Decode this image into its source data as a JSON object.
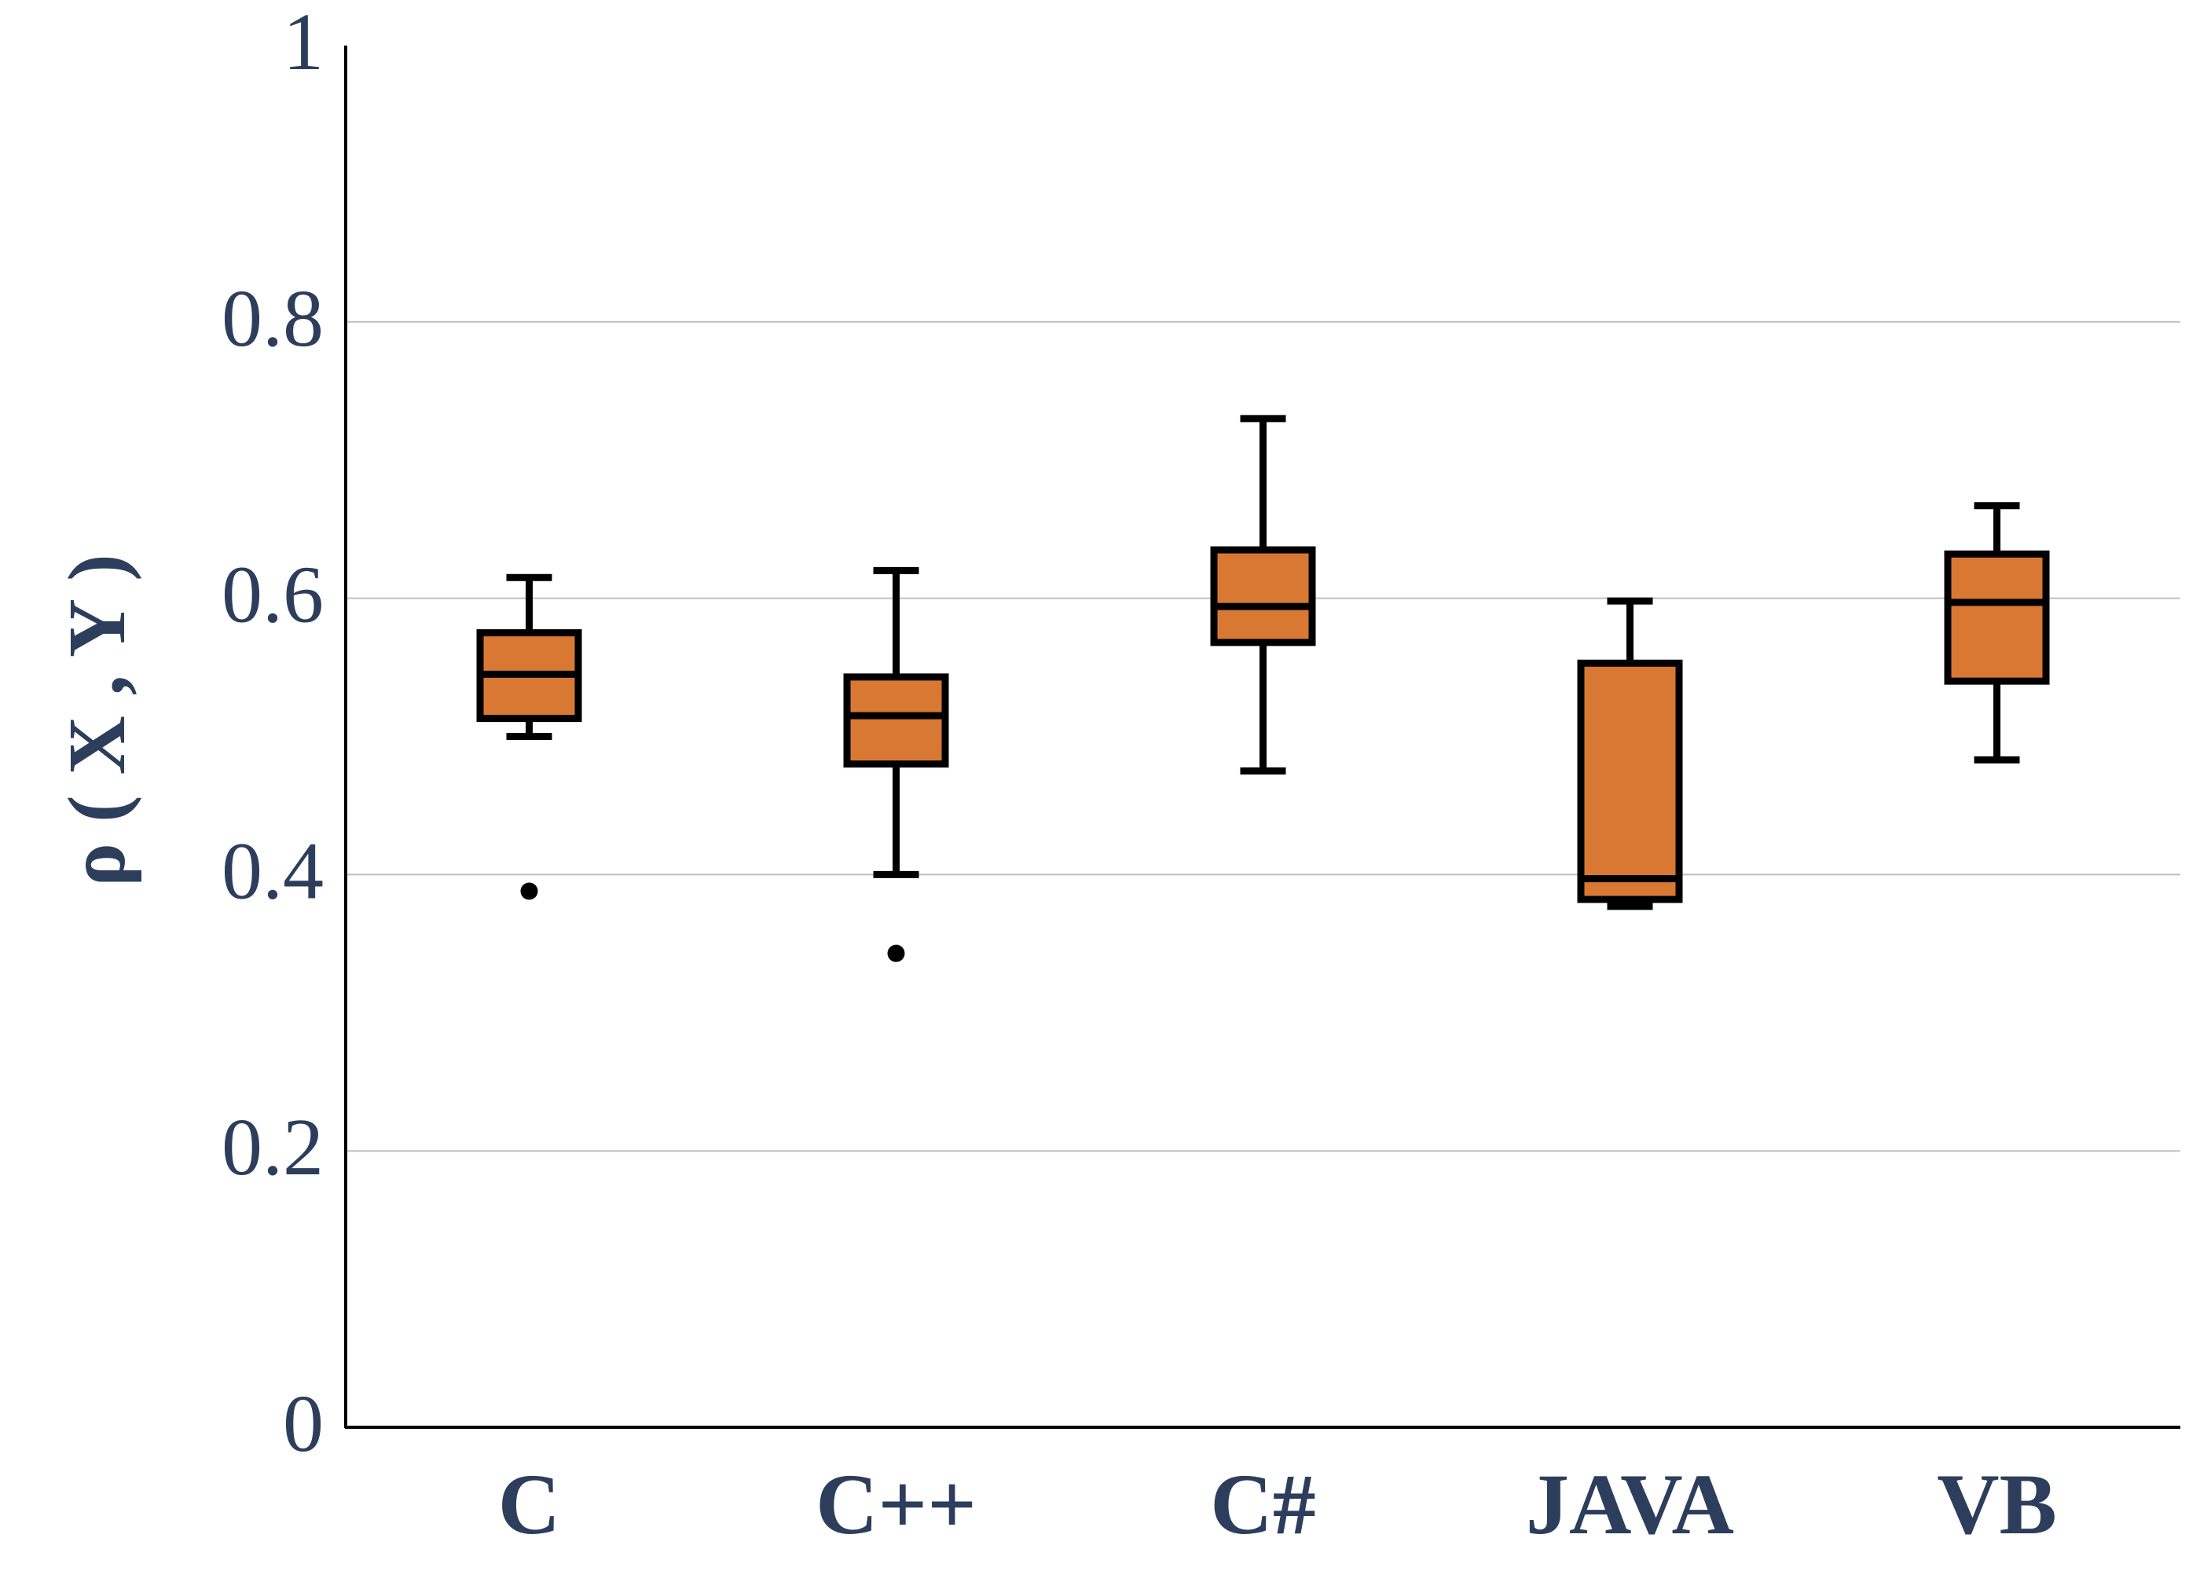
{
  "chart_data": {
    "type": "box",
    "title": "",
    "xlabel": "",
    "ylabel": "ρ ( X , Y )",
    "ylim": [
      0,
      1
    ],
    "yticks": [
      "0",
      "0.2",
      "0.4",
      "0.6",
      "0.8",
      "1"
    ],
    "grid": "horizontal",
    "categories": [
      "C",
      "C++",
      "C#",
      "JAVA",
      "VB"
    ],
    "series": [
      {
        "category": "C",
        "whisker_low": 0.5,
        "q1": 0.513,
        "median": 0.545,
        "q3": 0.575,
        "whisker_high": 0.615,
        "outliers": [
          0.388
        ]
      },
      {
        "category": "C++",
        "whisker_low": 0.4,
        "q1": 0.48,
        "median": 0.515,
        "q3": 0.543,
        "whisker_high": 0.62,
        "outliers": [
          0.343
        ]
      },
      {
        "category": "C#",
        "whisker_low": 0.475,
        "q1": 0.568,
        "median": 0.594,
        "q3": 0.635,
        "whisker_high": 0.73,
        "outliers": []
      },
      {
        "category": "JAVA",
        "whisker_low": 0.377,
        "q1": 0.382,
        "median": 0.397,
        "q3": 0.553,
        "whisker_high": 0.598,
        "outliers": []
      },
      {
        "category": "VB",
        "whisker_low": 0.483,
        "q1": 0.54,
        "median": 0.597,
        "q3": 0.632,
        "whisker_high": 0.667,
        "outliers": []
      }
    ],
    "colors": {
      "box_fill": "#d97832",
      "box_stroke": "#000000",
      "grid": "#bfbfbf",
      "text": "#2c3e5c"
    }
  }
}
